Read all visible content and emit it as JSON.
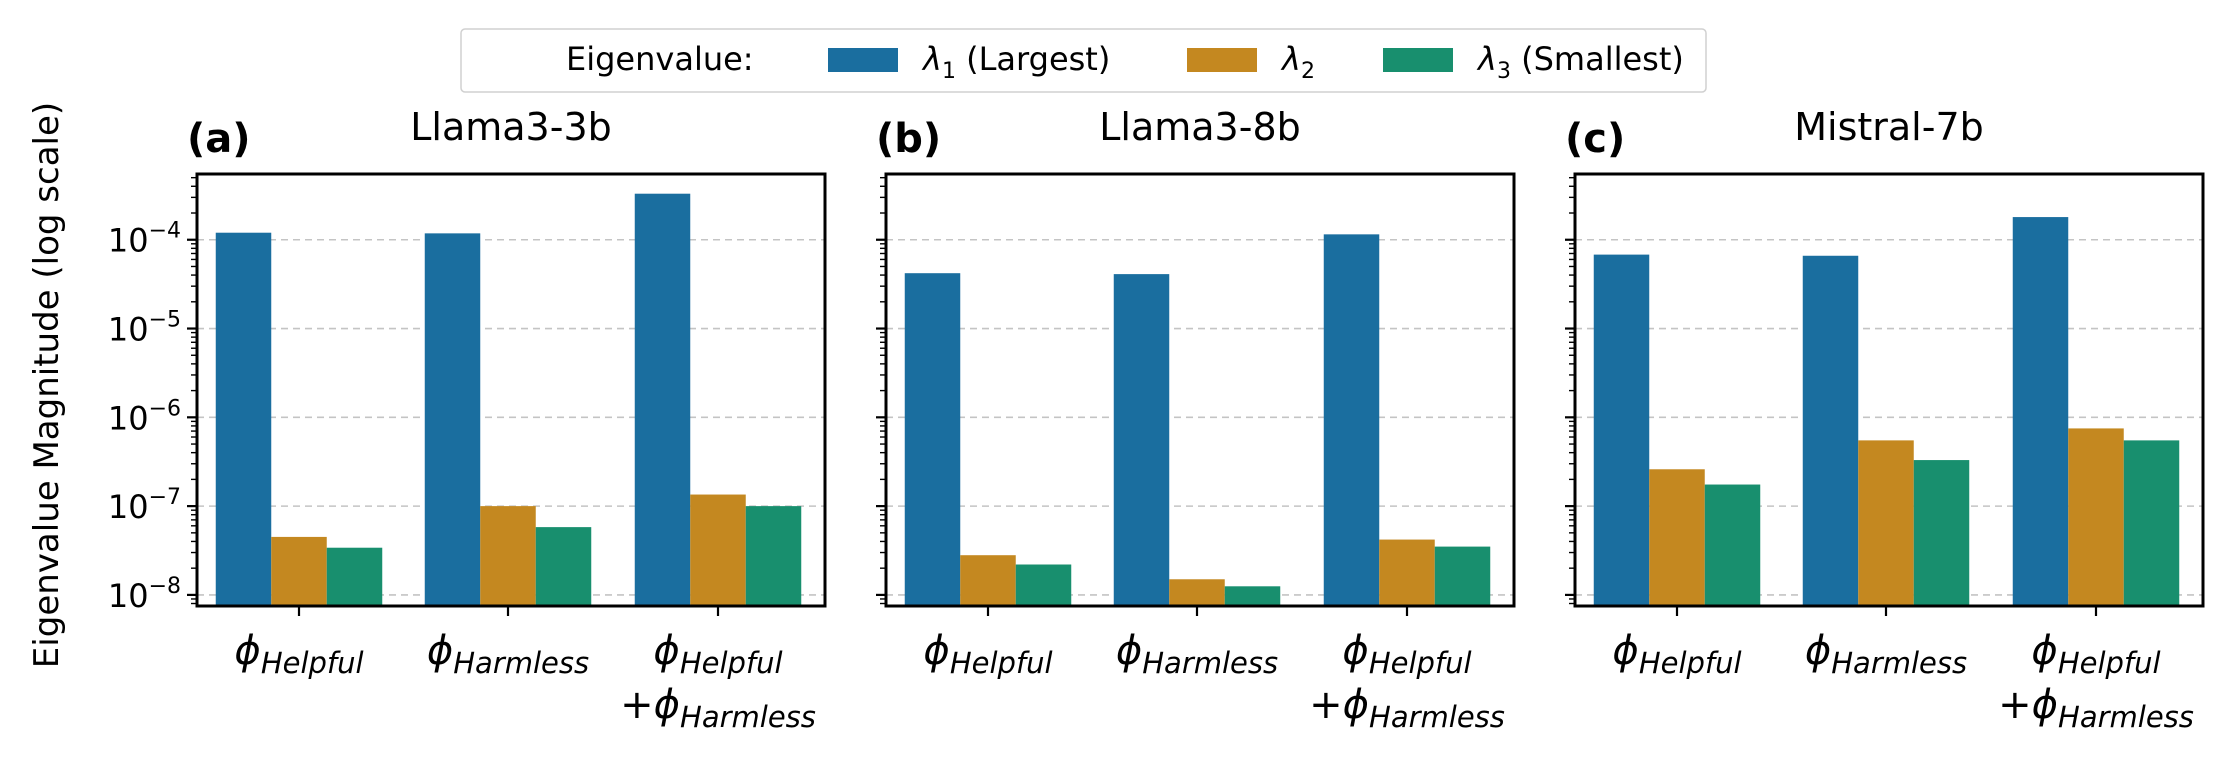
{
  "chart_data": {
    "type": "bar",
    "yscale": "log",
    "ylabel": "Eigenvalue Magnitude (log scale)",
    "ylim": [
      7.5e-09,
      0.00055
    ],
    "grid": "y-major-dashed",
    "tick_labels": [
      "10",
      "10",
      "10",
      "10",
      "10"
    ],
    "tick_exponents": [
      "−8",
      "−7",
      "−6",
      "−5",
      "−4"
    ],
    "tick_values": [
      1e-08,
      1e-07,
      1e-06,
      1e-05,
      0.0001
    ],
    "category_groups": [
      {
        "symbol": "ϕ",
        "subscript": "Helpful",
        "line2_prefix": "",
        "line2_subscript": ""
      },
      {
        "symbol": "ϕ",
        "subscript": "Harmless",
        "line2_prefix": "",
        "line2_subscript": ""
      },
      {
        "symbol": "ϕ",
        "subscript": "Helpful",
        "line2_prefix": "+ϕ",
        "line2_subscript": "Harmless"
      }
    ],
    "legend": {
      "title": "Eigenvalue:",
      "placement": "top-center",
      "entries": [
        {
          "symbol": "λ",
          "sub": "1",
          "suffix": " (Largest)",
          "color": "#1a6e9f"
        },
        {
          "symbol": "λ",
          "sub": "2",
          "suffix": "",
          "color": "#c48820"
        },
        {
          "symbol": "λ",
          "sub": "3",
          "suffix": " (Smallest)",
          "color": "#188f6e"
        }
      ]
    },
    "panels": [
      {
        "label": "(a)",
        "title": "Llama3-3b",
        "series": [
          {
            "name": "λ1 (Largest)",
            "values": [
              0.00012,
              0.000118,
              0.00033
            ]
          },
          {
            "name": "λ2",
            "values": [
              4.5e-08,
              1e-07,
              1.35e-07
            ]
          },
          {
            "name": "λ3 (Smallest)",
            "values": [
              3.4e-08,
              5.8e-08,
              1e-07
            ]
          }
        ]
      },
      {
        "label": "(b)",
        "title": "Llama3-8b",
        "series": [
          {
            "name": "λ1 (Largest)",
            "values": [
              4.2e-05,
              4.1e-05,
              0.000115
            ]
          },
          {
            "name": "λ2",
            "values": [
              2.8e-08,
              1.5e-08,
              4.2e-08
            ]
          },
          {
            "name": "λ3 (Smallest)",
            "values": [
              2.2e-08,
              1.25e-08,
              3.5e-08
            ]
          }
        ]
      },
      {
        "label": "(c)",
        "title": "Mistral-7b",
        "series": [
          {
            "name": "λ1 (Largest)",
            "values": [
              6.8e-05,
              6.6e-05,
              0.00018
            ]
          },
          {
            "name": "λ2",
            "values": [
              2.6e-07,
              5.5e-07,
              7.5e-07
            ]
          },
          {
            "name": "λ3 (Smallest)",
            "values": [
              1.75e-07,
              3.3e-07,
              5.5e-07
            ]
          }
        ]
      }
    ]
  }
}
